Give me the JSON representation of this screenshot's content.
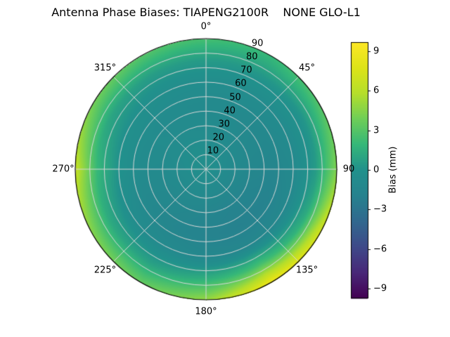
{
  "chart_data": {
    "type": "heatmap",
    "projection": "polar",
    "title": "Antenna Phase Biases: TIAPENG2100R    NONE GLO-L1",
    "grid": true,
    "angle_ticks_deg": [
      0,
      45,
      90,
      135,
      180,
      225,
      270,
      315
    ],
    "angle_tick_labels": [
      "0°",
      "45°",
      "90",
      "135°",
      "180°",
      "225°",
      "270°",
      "315°"
    ],
    "radial_ticks": [
      10,
      20,
      30,
      40,
      50,
      60,
      70,
      80,
      90
    ],
    "radial_tick_labels": [
      "10",
      "20",
      "30",
      "40",
      "50",
      "60",
      "70",
      "80",
      "90"
    ],
    "radial_label_angle_deg": 22.5,
    "rmax": 90,
    "azimuth_deg": [
      0,
      30,
      60,
      90,
      120,
      150,
      180,
      210,
      240,
      270,
      300,
      330,
      360
    ],
    "zenith_deg": [
      0,
      15,
      30,
      45,
      60,
      75,
      90
    ],
    "bias_mm": [
      [
        -0.3,
        -0.3,
        -0.3,
        -0.3,
        -0.3,
        -0.3,
        -0.3,
        -0.3,
        -0.3,
        -0.3,
        -0.3,
        -0.3,
        -0.3
      ],
      [
        -0.5,
        -0.6,
        -0.8,
        -0.9,
        -1.0,
        -1.0,
        -0.9,
        -0.8,
        -0.7,
        -0.6,
        -0.5,
        -0.4,
        -0.5
      ],
      [
        -0.8,
        -0.9,
        -1.1,
        -1.3,
        -1.6,
        -1.7,
        -1.5,
        -1.3,
        -1.1,
        -0.9,
        -0.7,
        -0.7,
        -0.8
      ],
      [
        -0.9,
        -1.0,
        -1.2,
        -1.5,
        -1.9,
        -2.0,
        -1.8,
        -1.5,
        -1.2,
        -0.8,
        -0.7,
        -0.8,
        -0.9
      ],
      [
        -0.5,
        -0.6,
        -0.8,
        -1.0,
        -1.2,
        -1.3,
        -1.2,
        -0.9,
        -0.5,
        0.0,
        -0.2,
        -0.4,
        -0.5
      ],
      [
        0.5,
        0.3,
        0.2,
        0.5,
        1.5,
        2.5,
        1.5,
        0.8,
        1.2,
        2.0,
        1.0,
        0.6,
        0.5
      ],
      [
        2.5,
        2.0,
        3.0,
        4.5,
        7.5,
        9.0,
        5.0,
        3.5,
        4.5,
        6.5,
        4.0,
        3.0,
        2.5
      ]
    ],
    "colorbar": {
      "label": "Bias (mm)",
      "tick_values": [
        9,
        6,
        3,
        0,
        -3,
        -6,
        -9
      ],
      "tick_labels": [
        "9",
        "6",
        "3",
        "0",
        "−3",
        "−6",
        "−9"
      ],
      "vmin": -9.7,
      "vmax": 9.7,
      "colormap": "viridis",
      "colormap_stops": [
        "#440154",
        "#482878",
        "#3e4a89",
        "#31688e",
        "#26828e",
        "#21918c",
        "#35b779",
        "#6ece58",
        "#b5de2b",
        "#dde318",
        "#fde725"
      ]
    },
    "grid_line_color": "#d8d8d8",
    "outline_color": "#000000"
  }
}
